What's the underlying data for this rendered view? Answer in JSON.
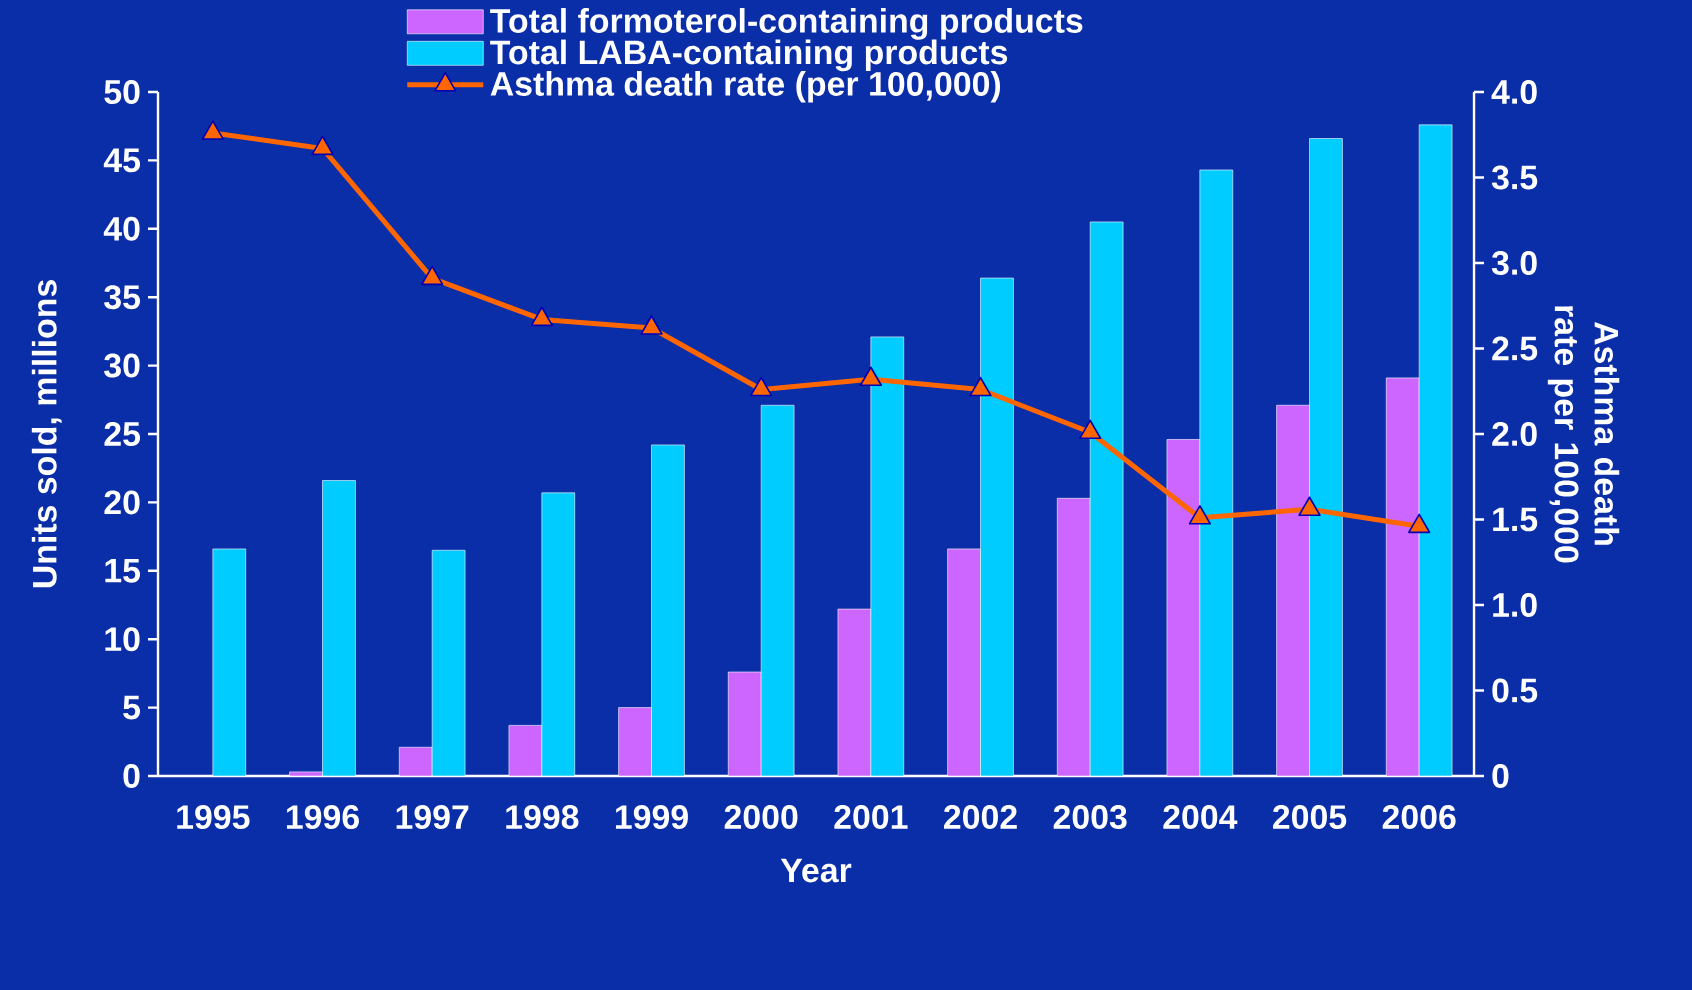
{
  "chart_data": {
    "type": "bar",
    "xlabel": "Year",
    "ylabel": "Units sold, millions",
    "y2label": "Asthma death rate per 100,000",
    "categories": [
      "1995",
      "1996",
      "1997",
      "1998",
      "1999",
      "2000",
      "2001",
      "2002",
      "2003",
      "2004",
      "2005",
      "2006"
    ],
    "series": [
      {
        "name": "Total formoterol-containing products",
        "type": "bar",
        "color": "#cc66ff",
        "values": [
          null,
          0.3,
          2.1,
          3.7,
          5.0,
          7.6,
          12.2,
          16.6,
          20.3,
          24.6,
          27.1,
          29.1
        ]
      },
      {
        "name": "Total LABA-containing products",
        "type": "bar",
        "color": "#00ccff",
        "values": [
          16.6,
          21.6,
          16.5,
          20.7,
          24.2,
          27.1,
          32.1,
          36.4,
          40.5,
          44.3,
          46.6,
          47.6
        ]
      },
      {
        "name": "Asthma death rate (per 100,000)",
        "type": "line",
        "axis": "y2",
        "color": "#ff6600",
        "marker": "triangle",
        "values": [
          3.76,
          3.67,
          2.91,
          2.67,
          2.62,
          2.26,
          2.32,
          2.26,
          2.01,
          1.51,
          1.56,
          1.46
        ]
      }
    ],
    "ylim": [
      0,
      50
    ],
    "yticks": [
      0,
      5,
      10,
      15,
      20,
      25,
      30,
      35,
      40,
      45,
      50
    ],
    "y2lim": [
      0,
      4
    ],
    "y2ticks": [
      0,
      0.5,
      {
        "value": 1,
        "label": "1.0"
      },
      1.5,
      {
        "value": 2,
        "label": "2.0"
      },
      2.5,
      {
        "value": 3,
        "label": "3.0"
      },
      3.5,
      {
        "value": 4,
        "label": "4.0"
      }
    ],
    "legend": "top"
  }
}
